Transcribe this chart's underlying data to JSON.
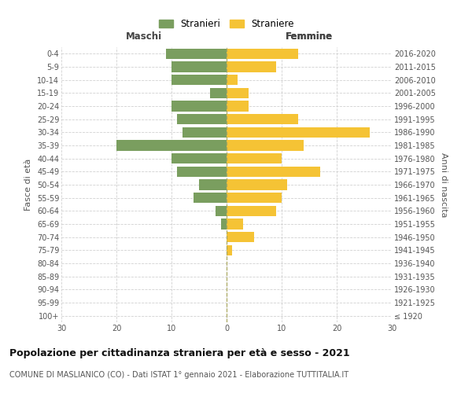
{
  "age_groups": [
    "100+",
    "95-99",
    "90-94",
    "85-89",
    "80-84",
    "75-79",
    "70-74",
    "65-69",
    "60-64",
    "55-59",
    "50-54",
    "45-49",
    "40-44",
    "35-39",
    "30-34",
    "25-29",
    "20-24",
    "15-19",
    "10-14",
    "5-9",
    "0-4"
  ],
  "birth_years": [
    "≤ 1920",
    "1921-1925",
    "1926-1930",
    "1931-1935",
    "1936-1940",
    "1941-1945",
    "1946-1950",
    "1951-1955",
    "1956-1960",
    "1961-1965",
    "1966-1970",
    "1971-1975",
    "1976-1980",
    "1981-1985",
    "1986-1990",
    "1991-1995",
    "1996-2000",
    "2001-2005",
    "2006-2010",
    "2011-2015",
    "2016-2020"
  ],
  "males": [
    0,
    0,
    0,
    0,
    0,
    0,
    0,
    1,
    2,
    6,
    5,
    9,
    10,
    20,
    8,
    9,
    10,
    3,
    10,
    10,
    11
  ],
  "females": [
    0,
    0,
    0,
    0,
    0,
    1,
    5,
    3,
    9,
    10,
    11,
    17,
    10,
    14,
    26,
    13,
    4,
    4,
    2,
    9,
    13
  ],
  "male_color": "#7a9e5f",
  "female_color": "#f5c335",
  "grid_color": "#cccccc",
  "title": "Popolazione per cittadinanza straniera per età e sesso - 2021",
  "subtitle": "COMUNE DI MASLIANICO (CO) - Dati ISTAT 1° gennaio 2021 - Elaborazione TUTTITALIA.IT",
  "xlabel_left": "Maschi",
  "xlabel_right": "Femmine",
  "ylabel_left": "Fasce di età",
  "ylabel_right": "Anni di nascita",
  "legend_male": "Stranieri",
  "legend_female": "Straniere",
  "xlim": 30,
  "bar_height": 0.8
}
